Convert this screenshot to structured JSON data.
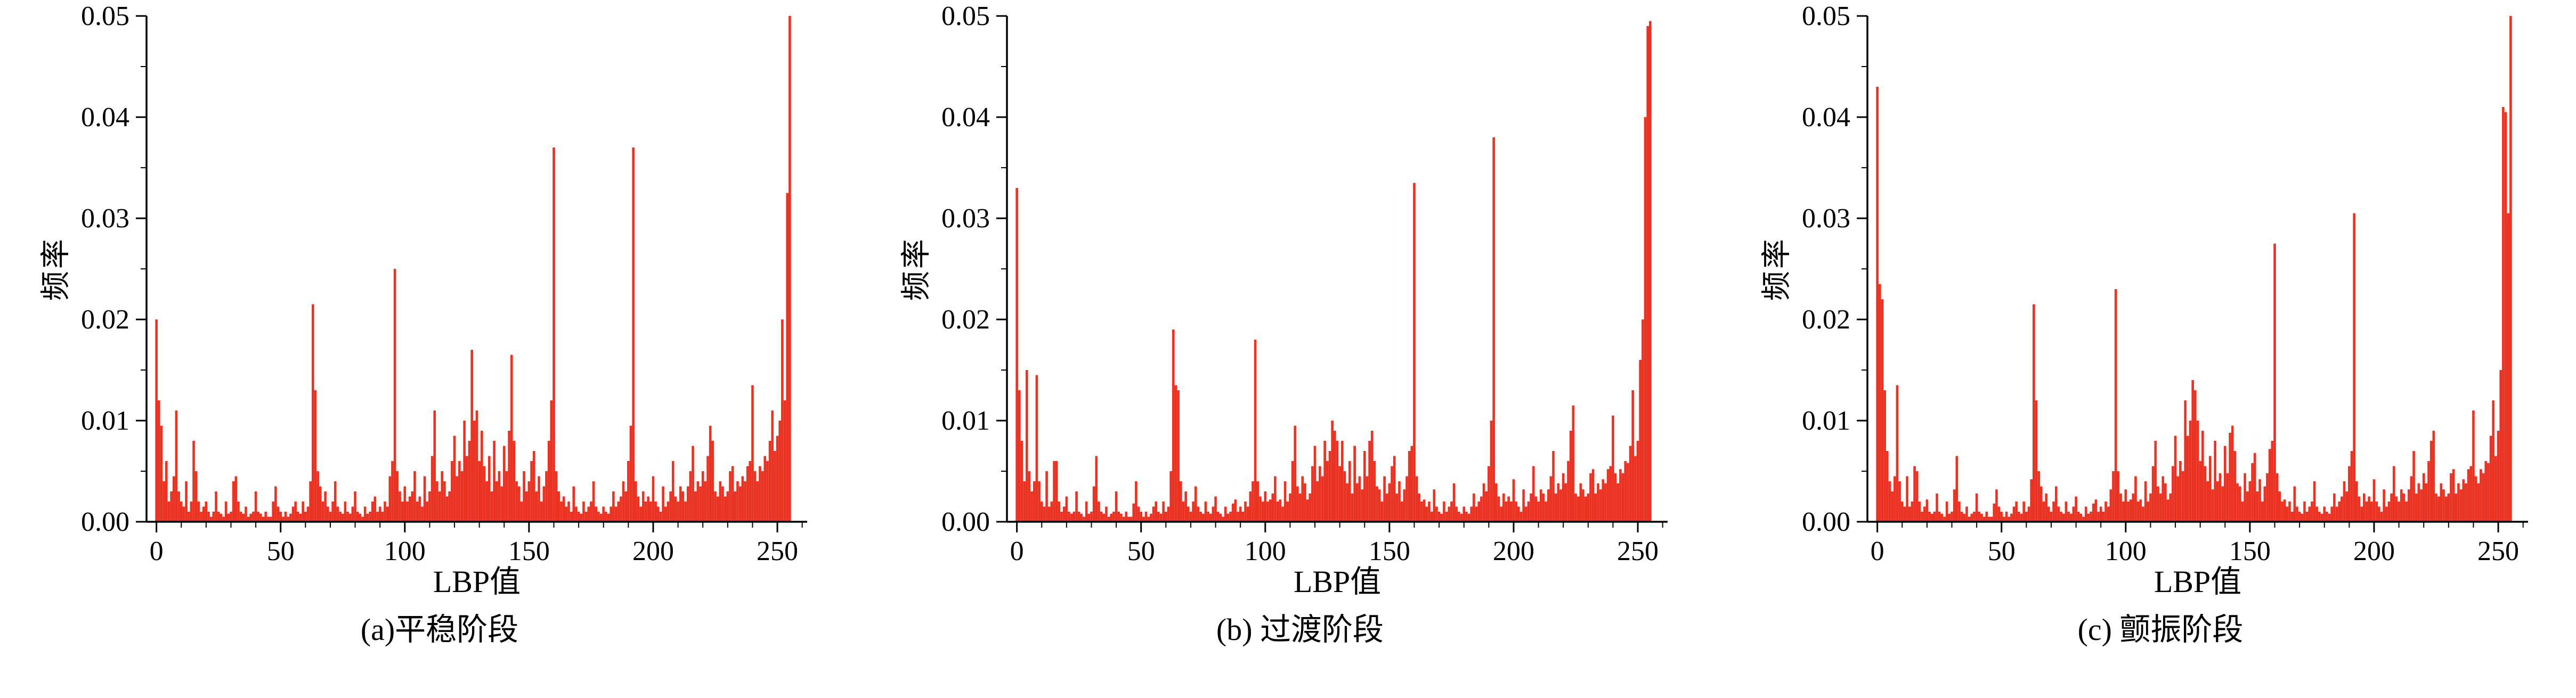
{
  "page": {
    "background": "#ffffff"
  },
  "colors": {
    "bar": "#ea3323",
    "axis": "#000000",
    "text": "#000000"
  },
  "chart_data": [
    {
      "type": "bar",
      "title": "(a)平稳阶段",
      "xlabel": "LBP值",
      "ylabel": "频率",
      "x_range": [
        0,
        255
      ],
      "xlim": [
        -4,
        262
      ],
      "ylim": [
        0,
        0.05
      ],
      "xticks": [
        0,
        50,
        100,
        150,
        200,
        250
      ],
      "xtick_labels": [
        "0",
        "50",
        "100",
        "150",
        "200",
        "250"
      ],
      "yticks": [
        0,
        0.01,
        0.02,
        0.03,
        0.04,
        0.05
      ],
      "ytick_labels": [
        "0.00",
        "0.01",
        "0.02",
        "0.03",
        "0.04",
        "0.05"
      ],
      "x_minor_step": 10,
      "y_minor_step": 0.005,
      "grid": false,
      "legend": false,
      "values": [
        0.02,
        0.012,
        0.0095,
        0.004,
        0.006,
        0.002,
        0.003,
        0.0045,
        0.011,
        0.003,
        0.002,
        0.0015,
        0.004,
        0.001,
        0.002,
        0.008,
        0.005,
        0.002,
        0.001,
        0.0015,
        0.002,
        0.001,
        0.0005,
        0.001,
        0.003,
        0.001,
        0.0008,
        0.0005,
        0.002,
        0.0008,
        0.001,
        0.004,
        0.0045,
        0.002,
        0.001,
        0.0008,
        0.0015,
        0.0005,
        0.0008,
        0.001,
        0.003,
        0.001,
        0.0008,
        0.0005,
        0.001,
        0.0005,
        0.0005,
        0.002,
        0.0035,
        0.0015,
        0.001,
        0.0005,
        0.001,
        0.0005,
        0.0008,
        0.0015,
        0.002,
        0.001,
        0.0008,
        0.002,
        0.001,
        0.0015,
        0.004,
        0.0215,
        0.013,
        0.005,
        0.0035,
        0.002,
        0.003,
        0.0015,
        0.001,
        0.002,
        0.004,
        0.0015,
        0.001,
        0.0008,
        0.002,
        0.001,
        0.0008,
        0.0015,
        0.003,
        0.001,
        0.0008,
        0.0005,
        0.0015,
        0.0008,
        0.001,
        0.002,
        0.0025,
        0.001,
        0.0015,
        0.001,
        0.002,
        0.0015,
        0.0045,
        0.006,
        0.025,
        0.005,
        0.003,
        0.002,
        0.0035,
        0.002,
        0.0025,
        0.003,
        0.005,
        0.002,
        0.0025,
        0.0015,
        0.0045,
        0.002,
        0.003,
        0.0065,
        0.011,
        0.004,
        0.003,
        0.005,
        0.004,
        0.0025,
        0.003,
        0.006,
        0.0085,
        0.0045,
        0.006,
        0.005,
        0.01,
        0.0065,
        0.008,
        0.017,
        0.01,
        0.011,
        0.006,
        0.009,
        0.0055,
        0.004,
        0.0065,
        0.003,
        0.008,
        0.004,
        0.005,
        0.0035,
        0.0075,
        0.005,
        0.009,
        0.0165,
        0.008,
        0.004,
        0.0035,
        0.002,
        0.005,
        0.003,
        0.004,
        0.006,
        0.007,
        0.003,
        0.0045,
        0.002,
        0.0035,
        0.005,
        0.008,
        0.012,
        0.037,
        0.005,
        0.003,
        0.002,
        0.0025,
        0.0015,
        0.002,
        0.001,
        0.0035,
        0.0015,
        0.001,
        0.0008,
        0.002,
        0.001,
        0.0015,
        0.002,
        0.004,
        0.0015,
        0.001,
        0.0008,
        0.0015,
        0.001,
        0.0008,
        0.0015,
        0.003,
        0.0015,
        0.002,
        0.0025,
        0.004,
        0.003,
        0.006,
        0.0095,
        0.037,
        0.004,
        0.0025,
        0.0015,
        0.003,
        0.002,
        0.0025,
        0.002,
        0.0045,
        0.002,
        0.0015,
        0.001,
        0.0035,
        0.0015,
        0.002,
        0.003,
        0.006,
        0.0025,
        0.002,
        0.0035,
        0.003,
        0.002,
        0.0035,
        0.005,
        0.0075,
        0.003,
        0.004,
        0.0035,
        0.005,
        0.004,
        0.0065,
        0.0095,
        0.008,
        0.003,
        0.0025,
        0.004,
        0.0035,
        0.0025,
        0.003,
        0.005,
        0.0055,
        0.003,
        0.004,
        0.0035,
        0.0045,
        0.004,
        0.0055,
        0.006,
        0.0135,
        0.005,
        0.004,
        0.0055,
        0.005,
        0.0065,
        0.006,
        0.008,
        0.011,
        0.007,
        0.0085,
        0.01,
        0.02,
        0.012,
        0.0325,
        0.05
      ]
    },
    {
      "type": "bar",
      "title": "(b) 过渡阶段",
      "xlabel": "LBP值",
      "ylabel": "频率",
      "x_range": [
        0,
        255
      ],
      "xlim": [
        -4,
        262
      ],
      "ylim": [
        0,
        0.05
      ],
      "xticks": [
        0,
        50,
        100,
        150,
        200,
        250
      ],
      "xtick_labels": [
        "0",
        "50",
        "100",
        "150",
        "200",
        "250"
      ],
      "yticks": [
        0,
        0.01,
        0.02,
        0.03,
        0.04,
        0.05
      ],
      "ytick_labels": [
        "0.00",
        "0.01",
        "0.02",
        "0.03",
        "0.04",
        "0.05"
      ],
      "x_minor_step": 10,
      "y_minor_step": 0.005,
      "grid": false,
      "legend": false,
      "values": [
        0.033,
        0.013,
        0.008,
        0.004,
        0.015,
        0.005,
        0.003,
        0.004,
        0.0145,
        0.004,
        0.002,
        0.0015,
        0.005,
        0.0015,
        0.002,
        0.006,
        0.006,
        0.002,
        0.001,
        0.0015,
        0.0025,
        0.001,
        0.0008,
        0.001,
        0.003,
        0.001,
        0.0008,
        0.0005,
        0.002,
        0.0008,
        0.001,
        0.0035,
        0.0065,
        0.002,
        0.001,
        0.0008,
        0.0015,
        0.0005,
        0.0008,
        0.001,
        0.003,
        0.001,
        0.0008,
        0.0005,
        0.001,
        0.0005,
        0.0005,
        0.0018,
        0.004,
        0.0015,
        0.001,
        0.0005,
        0.001,
        0.0005,
        0.0008,
        0.0015,
        0.002,
        0.001,
        0.0008,
        0.002,
        0.001,
        0.0015,
        0.005,
        0.019,
        0.0135,
        0.013,
        0.004,
        0.002,
        0.003,
        0.0015,
        0.001,
        0.002,
        0.0035,
        0.0015,
        0.001,
        0.0008,
        0.002,
        0.001,
        0.0008,
        0.0015,
        0.0025,
        0.001,
        0.0008,
        0.0005,
        0.0015,
        0.0008,
        0.001,
        0.0018,
        0.0022,
        0.001,
        0.0015,
        0.001,
        0.002,
        0.0015,
        0.003,
        0.004,
        0.018,
        0.004,
        0.0025,
        0.002,
        0.003,
        0.002,
        0.0022,
        0.0028,
        0.0045,
        0.002,
        0.0022,
        0.0015,
        0.004,
        0.002,
        0.0028,
        0.006,
        0.0095,
        0.0035,
        0.0028,
        0.0045,
        0.0038,
        0.0022,
        0.0028,
        0.0055,
        0.0075,
        0.004,
        0.0055,
        0.0045,
        0.008,
        0.006,
        0.007,
        0.01,
        0.009,
        0.008,
        0.0055,
        0.008,
        0.005,
        0.0038,
        0.006,
        0.0028,
        0.0075,
        0.0038,
        0.0045,
        0.0032,
        0.007,
        0.0045,
        0.008,
        0.009,
        0.006,
        0.0035,
        0.0032,
        0.002,
        0.0045,
        0.0028,
        0.0038,
        0.0055,
        0.0065,
        0.0028,
        0.004,
        0.002,
        0.0032,
        0.0045,
        0.007,
        0.0075,
        0.0335,
        0.0045,
        0.0028,
        0.002,
        0.0022,
        0.0015,
        0.002,
        0.001,
        0.0032,
        0.0015,
        0.001,
        0.0008,
        0.002,
        0.001,
        0.0015,
        0.002,
        0.0038,
        0.0015,
        0.001,
        0.0008,
        0.0015,
        0.001,
        0.0008,
        0.0015,
        0.0028,
        0.0015,
        0.002,
        0.0025,
        0.0038,
        0.003,
        0.0055,
        0.01,
        0.038,
        0.0038,
        0.0025,
        0.0015,
        0.0028,
        0.002,
        0.0025,
        0.002,
        0.0042,
        0.002,
        0.0015,
        0.001,
        0.0032,
        0.0015,
        0.002,
        0.0028,
        0.0055,
        0.0025,
        0.002,
        0.0032,
        0.0028,
        0.002,
        0.0032,
        0.0045,
        0.007,
        0.0028,
        0.0038,
        0.0032,
        0.0048,
        0.0038,
        0.006,
        0.009,
        0.0115,
        0.0028,
        0.0025,
        0.0038,
        0.0032,
        0.0025,
        0.0028,
        0.0048,
        0.0052,
        0.0028,
        0.0038,
        0.0032,
        0.0042,
        0.0038,
        0.0052,
        0.0055,
        0.0105,
        0.0048,
        0.0038,
        0.0052,
        0.0048,
        0.006,
        0.0058,
        0.0075,
        0.013,
        0.0065,
        0.008,
        0.016,
        0.02,
        0.04,
        0.049,
        0.0495
      ]
    },
    {
      "type": "bar",
      "title": "(c) 颤振阶段",
      "xlabel": "LBP值",
      "ylabel": "频率",
      "x_range": [
        0,
        255
      ],
      "xlim": [
        -4,
        262
      ],
      "ylim": [
        0,
        0.05
      ],
      "xticks": [
        0,
        50,
        100,
        150,
        200,
        250
      ],
      "xtick_labels": [
        "0",
        "50",
        "100",
        "150",
        "200",
        "250"
      ],
      "yticks": [
        0,
        0.01,
        0.02,
        0.03,
        0.04,
        0.05
      ],
      "ytick_labels": [
        "0.00",
        "0.01",
        "0.02",
        "0.03",
        "0.04",
        "0.05"
      ],
      "x_minor_step": 10,
      "y_minor_step": 0.005,
      "grid": false,
      "legend": false,
      "values": [
        0.043,
        0.0235,
        0.022,
        0.013,
        0.007,
        0.004,
        0.003,
        0.0045,
        0.0135,
        0.004,
        0.002,
        0.0015,
        0.0045,
        0.0015,
        0.002,
        0.0055,
        0.005,
        0.002,
        0.001,
        0.0015,
        0.0022,
        0.001,
        0.0008,
        0.001,
        0.0028,
        0.001,
        0.0008,
        0.0005,
        0.002,
        0.0008,
        0.001,
        0.0032,
        0.0065,
        0.002,
        0.001,
        0.0008,
        0.0015,
        0.0005,
        0.0008,
        0.001,
        0.0028,
        0.001,
        0.0008,
        0.0005,
        0.001,
        0.0005,
        0.0005,
        0.0018,
        0.0032,
        0.0015,
        0.001,
        0.0005,
        0.001,
        0.0005,
        0.0008,
        0.0015,
        0.002,
        0.001,
        0.0008,
        0.002,
        0.001,
        0.0015,
        0.0042,
        0.0215,
        0.012,
        0.005,
        0.0035,
        0.002,
        0.0028,
        0.0015,
        0.001,
        0.002,
        0.0035,
        0.0015,
        0.001,
        0.0008,
        0.002,
        0.001,
        0.0008,
        0.0015,
        0.0025,
        0.001,
        0.0008,
        0.0005,
        0.0015,
        0.0008,
        0.001,
        0.0018,
        0.0022,
        0.001,
        0.0015,
        0.001,
        0.002,
        0.0015,
        0.0032,
        0.005,
        0.023,
        0.005,
        0.0028,
        0.002,
        0.0032,
        0.002,
        0.0022,
        0.0028,
        0.0045,
        0.002,
        0.0022,
        0.0015,
        0.004,
        0.002,
        0.0028,
        0.0055,
        0.008,
        0.0035,
        0.0028,
        0.0045,
        0.0038,
        0.0022,
        0.0028,
        0.0055,
        0.0085,
        0.0045,
        0.006,
        0.005,
        0.012,
        0.0085,
        0.01,
        0.014,
        0.013,
        0.01,
        0.006,
        0.009,
        0.0055,
        0.004,
        0.0065,
        0.0032,
        0.008,
        0.004,
        0.0048,
        0.0035,
        0.0075,
        0.0048,
        0.0088,
        0.0095,
        0.007,
        0.0038,
        0.0035,
        0.002,
        0.0048,
        0.003,
        0.004,
        0.0058,
        0.0068,
        0.003,
        0.0042,
        0.002,
        0.0035,
        0.0048,
        0.0072,
        0.008,
        0.0275,
        0.0048,
        0.003,
        0.002,
        0.0022,
        0.0015,
        0.002,
        0.001,
        0.0035,
        0.0015,
        0.001,
        0.0008,
        0.002,
        0.001,
        0.0015,
        0.002,
        0.004,
        0.0015,
        0.001,
        0.0008,
        0.0015,
        0.001,
        0.0008,
        0.0015,
        0.0028,
        0.0015,
        0.002,
        0.0025,
        0.004,
        0.003,
        0.0055,
        0.007,
        0.0305,
        0.004,
        0.0025,
        0.0015,
        0.0028,
        0.002,
        0.0025,
        0.002,
        0.0042,
        0.002,
        0.0015,
        0.001,
        0.0032,
        0.0015,
        0.002,
        0.0028,
        0.0055,
        0.0025,
        0.002,
        0.0032,
        0.0028,
        0.002,
        0.0032,
        0.0045,
        0.007,
        0.0028,
        0.0038,
        0.0032,
        0.0048,
        0.0038,
        0.006,
        0.008,
        0.009,
        0.0028,
        0.0025,
        0.0038,
        0.0032,
        0.0025,
        0.0028,
        0.0048,
        0.0052,
        0.0028,
        0.0038,
        0.0032,
        0.0042,
        0.0038,
        0.0052,
        0.0055,
        0.011,
        0.0045,
        0.0038,
        0.0052,
        0.0048,
        0.006,
        0.0058,
        0.0085,
        0.012,
        0.0065,
        0.009,
        0.015,
        0.041,
        0.0405,
        0.0305,
        0.05
      ]
    }
  ]
}
